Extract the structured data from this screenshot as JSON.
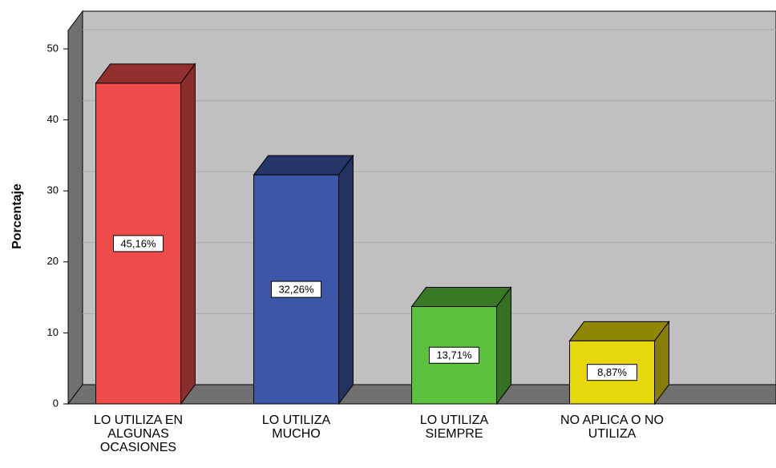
{
  "chart_data": {
    "type": "bar3d",
    "ylabel": "Porcentaje",
    "categories": [
      "LO UTILIZA EN ALGUNAS OCASIONES",
      "LO UTILIZA MUCHO",
      "LO UTILIZA SIEMPRE",
      "NO APLICA O NO UTILIZA"
    ],
    "values": [
      45.16,
      32.26,
      13.71,
      8.87
    ],
    "value_labels": [
      "45,16%",
      "32,26%",
      "13,71%",
      "8,87%"
    ],
    "colors": [
      "#ee4b4b",
      "#3d57a8",
      "#5cc13c",
      "#e6d80a"
    ],
    "ylim": [
      0,
      50
    ],
    "yticks": [
      0,
      10,
      20,
      30,
      40,
      50
    ],
    "grid": true
  }
}
